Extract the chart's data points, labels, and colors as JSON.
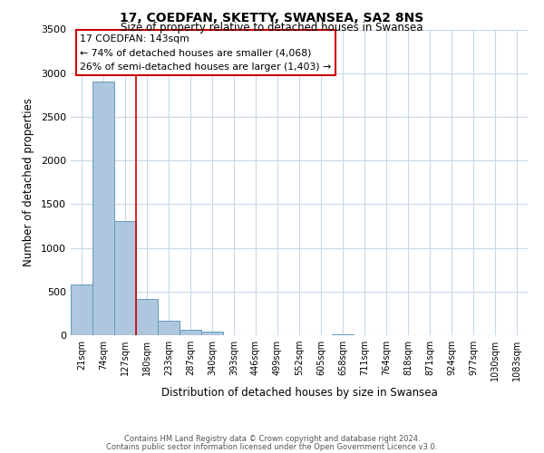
{
  "title": "17, COEDFAN, SKETTY, SWANSEA, SA2 8NS",
  "subtitle": "Size of property relative to detached houses in Swansea",
  "xlabel": "Distribution of detached houses by size in Swansea",
  "ylabel": "Number of detached properties",
  "bar_labels": [
    "21sqm",
    "74sqm",
    "127sqm",
    "180sqm",
    "233sqm",
    "287sqm",
    "340sqm",
    "393sqm",
    "446sqm",
    "499sqm",
    "552sqm",
    "605sqm",
    "658sqm",
    "711sqm",
    "764sqm",
    "818sqm",
    "871sqm",
    "924sqm",
    "977sqm",
    "1030sqm",
    "1083sqm"
  ],
  "bar_values": [
    580,
    2900,
    1310,
    420,
    165,
    65,
    38,
    0,
    0,
    0,
    0,
    0,
    15,
    0,
    0,
    0,
    0,
    0,
    0,
    0,
    0
  ],
  "bar_color": "#aec6de",
  "bar_edge_color": "#6699bb",
  "vline_color": "#cc0000",
  "vline_x": 2.5,
  "ylim": [
    0,
    3500
  ],
  "yticks": [
    0,
    500,
    1000,
    1500,
    2000,
    2500,
    3000,
    3500
  ],
  "annotation_line1": "17 COEDFAN: 143sqm",
  "annotation_line2": "← 74% of detached houses are smaller (4,068)",
  "annotation_line3": "26% of semi-detached houses are larger (1,403) →",
  "annotation_box_color": "#cc0000",
  "footer_line1": "Contains HM Land Registry data © Crown copyright and database right 2024.",
  "footer_line2": "Contains public sector information licensed under the Open Government Licence v3.0.",
  "background_color": "#ffffff",
  "grid_color": "#c8d8e8"
}
